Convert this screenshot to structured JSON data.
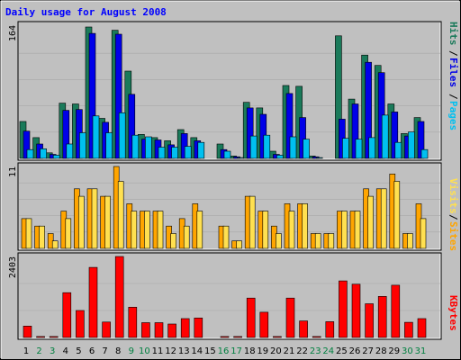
{
  "title": "Daily usage for August 2008",
  "colors": {
    "background": "#c0c0c0",
    "plot_background": "#c0c0c0",
    "title": "#0000ff",
    "hits": "#1a7a5a",
    "files": "#0000e8",
    "pages": "#00c0f0",
    "visits": "#ffa500",
    "sites": "#ffe050",
    "kbytes": "#ff0000",
    "weekend_label": "#008040",
    "weekday_label": "#000000"
  },
  "chart_data": [
    {
      "type": "bar",
      "name": "hits-files-pages",
      "ylabel_parts": [
        "Pages",
        "Files",
        "Hits"
      ],
      "ymax_label": "164",
      "ylim": [
        0,
        164
      ],
      "categories": [
        "1",
        "2",
        "3",
        "4",
        "5",
        "6",
        "7",
        "8",
        "9",
        "10",
        "11",
        "12",
        "13",
        "14",
        "15",
        "16",
        "17",
        "18",
        "19",
        "20",
        "21",
        "22",
        "23",
        "24",
        "25",
        "26",
        "27",
        "28",
        "29",
        "30",
        "31"
      ],
      "series": [
        {
          "name": "Hits",
          "values": [
            46,
            26,
            7,
            69,
            68,
            164,
            50,
            160,
            109,
            30,
            26,
            22,
            36,
            26,
            0,
            18,
            3,
            70,
            63,
            9,
            91,
            90,
            3,
            0,
            153,
            74,
            129,
            116,
            68,
            31,
            51
          ]
        },
        {
          "name": "Files",
          "values": [
            34,
            18,
            5,
            60,
            61,
            156,
            45,
            155,
            80,
            24,
            23,
            17,
            31,
            22,
            0,
            11,
            2,
            63,
            55,
            5,
            81,
            51,
            2,
            0,
            49,
            68,
            120,
            107,
            58,
            28,
            46
          ]
        },
        {
          "name": "Pages",
          "values": [
            11,
            12,
            4,
            18,
            32,
            53,
            32,
            57,
            29,
            27,
            14,
            14,
            15,
            20,
            0,
            9,
            1,
            28,
            29,
            4,
            27,
            24,
            1,
            0,
            25,
            24,
            26,
            54,
            20,
            33,
            11
          ]
        }
      ]
    },
    {
      "type": "bar",
      "name": "visits-sites",
      "ylabel_parts": [
        "Sites",
        "Visits"
      ],
      "ymax_label": "11",
      "ylim": [
        0,
        11
      ],
      "categories": [
        "1",
        "2",
        "3",
        "4",
        "5",
        "6",
        "7",
        "8",
        "9",
        "10",
        "11",
        "12",
        "13",
        "14",
        "15",
        "16",
        "17",
        "18",
        "19",
        "20",
        "21",
        "22",
        "23",
        "24",
        "25",
        "26",
        "27",
        "28",
        "29",
        "30",
        "31"
      ],
      "series": [
        {
          "name": "Visits",
          "values": [
            4,
            3,
            2,
            5,
            8,
            8,
            7,
            11,
            6,
            5,
            5,
            3,
            4,
            6,
            0,
            3,
            1,
            7,
            5,
            3,
            6,
            6,
            2,
            2,
            5,
            5,
            8,
            8,
            10,
            2,
            6
          ]
        },
        {
          "name": "Sites",
          "values": [
            4,
            3,
            1,
            4,
            7,
            8,
            7,
            9,
            5,
            5,
            5,
            2,
            3,
            5,
            0,
            3,
            1,
            7,
            5,
            2,
            5,
            6,
            2,
            2,
            5,
            5,
            7,
            8,
            9,
            2,
            4
          ]
        }
      ]
    },
    {
      "type": "bar",
      "name": "kbytes",
      "ylabel_parts": [
        "KBytes"
      ],
      "ymax_label": "2403",
      "ylim": [
        0,
        2403
      ],
      "categories": [
        "1",
        "2",
        "3",
        "4",
        "5",
        "6",
        "7",
        "8",
        "9",
        "10",
        "11",
        "12",
        "13",
        "14",
        "15",
        "16",
        "17",
        "18",
        "19",
        "20",
        "21",
        "22",
        "23",
        "24",
        "25",
        "26",
        "27",
        "28",
        "29",
        "30",
        "31"
      ],
      "series": [
        {
          "name": "KBytes",
          "values": [
            340,
            30,
            30,
            1330,
            800,
            2080,
            460,
            2403,
            900,
            440,
            440,
            400,
            560,
            580,
            0,
            30,
            30,
            1170,
            750,
            30,
            1170,
            490,
            30,
            470,
            1680,
            1580,
            1000,
            1220,
            1550,
            450,
            560
          ]
        }
      ]
    }
  ],
  "weekends": [
    "2",
    "3",
    "9",
    "10",
    "16",
    "17",
    "23",
    "24",
    "30",
    "31"
  ]
}
